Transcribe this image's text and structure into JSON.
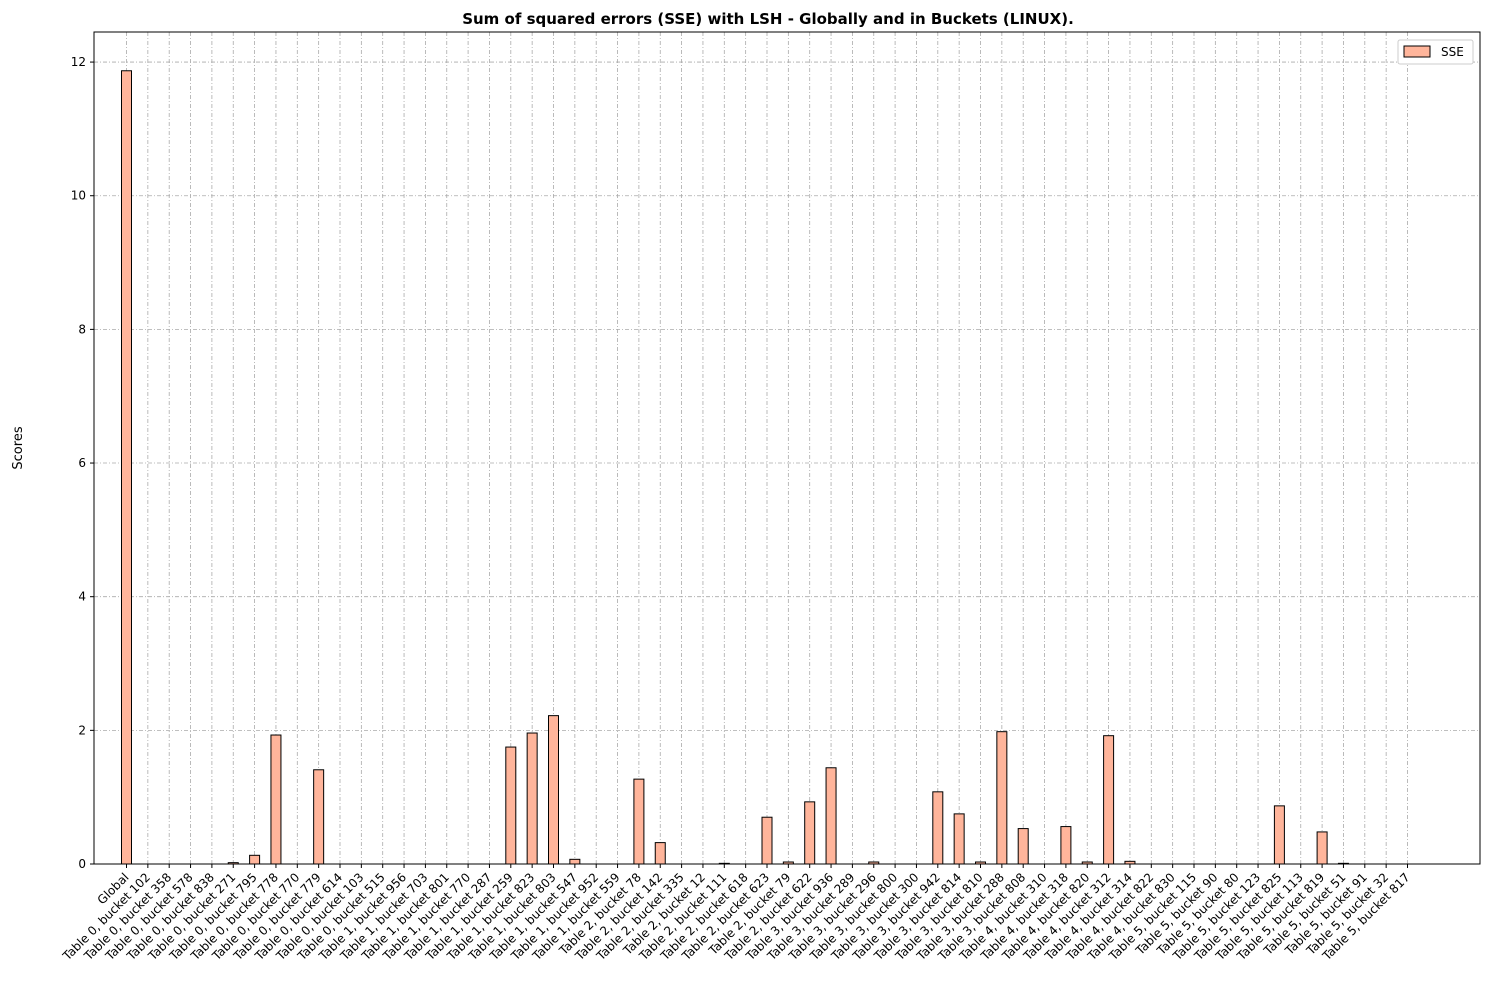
{
  "chart_data": {
    "type": "bar",
    "title": "Sum of squared errors (SSE) with LSH - Globally and in Buckets (LINUX).",
    "xlabel": "",
    "ylabel": "Scores",
    "ylim": [
      0,
      12.45
    ],
    "yticks": [
      0,
      2,
      4,
      6,
      8,
      10,
      12
    ],
    "grid": true,
    "legend_position": "top-right",
    "categories": [
      "Global",
      "Table 0, bucket 102",
      "Table 0, bucket 358",
      "Table 0, bucket 578",
      "Table 0, bucket 838",
      "Table 0, bucket 271",
      "Table 0, bucket 795",
      "Table 0, bucket 778",
      "Table 0, bucket 770",
      "Table 0, bucket 779",
      "Table 0, bucket 614",
      "Table 0, bucket 103",
      "Table 0, bucket 515",
      "Table 1, bucket 956",
      "Table 1, bucket 703",
      "Table 1, bucket 801",
      "Table 1, bucket 770",
      "Table 1, bucket 287",
      "Table 1, bucket 259",
      "Table 1, bucket 823",
      "Table 1, bucket 803",
      "Table 1, bucket 547",
      "Table 1, bucket 952",
      "Table 1, bucket 559",
      "Table 2, bucket 78",
      "Table 2, bucket 142",
      "Table 2, bucket 335",
      "Table 2, bucket 12",
      "Table 2, bucket 111",
      "Table 2, bucket 618",
      "Table 2, bucket 623",
      "Table 2, bucket 79",
      "Table 2, bucket 622",
      "Table 3, bucket 936",
      "Table 3, bucket 289",
      "Table 3, bucket 296",
      "Table 3, bucket 800",
      "Table 3, bucket 300",
      "Table 3, bucket 942",
      "Table 3, bucket 814",
      "Table 3, bucket 810",
      "Table 3, bucket 288",
      "Table 3, bucket 808",
      "Table 4, bucket 310",
      "Table 4, bucket 318",
      "Table 4, bucket 820",
      "Table 4, bucket 312",
      "Table 4, bucket 314",
      "Table 4, bucket 822",
      "Table 4, bucket 830",
      "Table 5, bucket 115",
      "Table 5, bucket 90",
      "Table 5, bucket 80",
      "Table 5, bucket 123",
      "Table 5, bucket 825",
      "Table 5, bucket 113",
      "Table 5, bucket 819",
      "Table 5, bucket 51",
      "Table 5, bucket 91",
      "Table 5, bucket 32",
      "Table 5, bucket 817"
    ],
    "series": [
      {
        "name": "SSE",
        "color": "#ffb59b",
        "edgecolor": "#000000",
        "values": [
          11.87,
          0,
          0,
          0,
          0,
          0.02,
          0.13,
          1.93,
          0,
          1.41,
          0,
          0,
          0,
          0,
          0,
          0,
          0,
          0,
          1.75,
          1.96,
          2.22,
          0.07,
          0,
          0,
          1.27,
          0.32,
          0,
          0,
          0.01,
          0,
          0.7,
          0.03,
          0.93,
          1.44,
          0,
          0.03,
          0,
          0,
          1.08,
          0.75,
          0.03,
          1.98,
          0.53,
          0,
          0.56,
          0.03,
          1.92,
          0.04,
          0,
          0,
          0,
          0,
          0,
          0,
          0.87,
          0,
          0.48,
          0.01,
          0,
          0,
          0
        ]
      }
    ]
  }
}
